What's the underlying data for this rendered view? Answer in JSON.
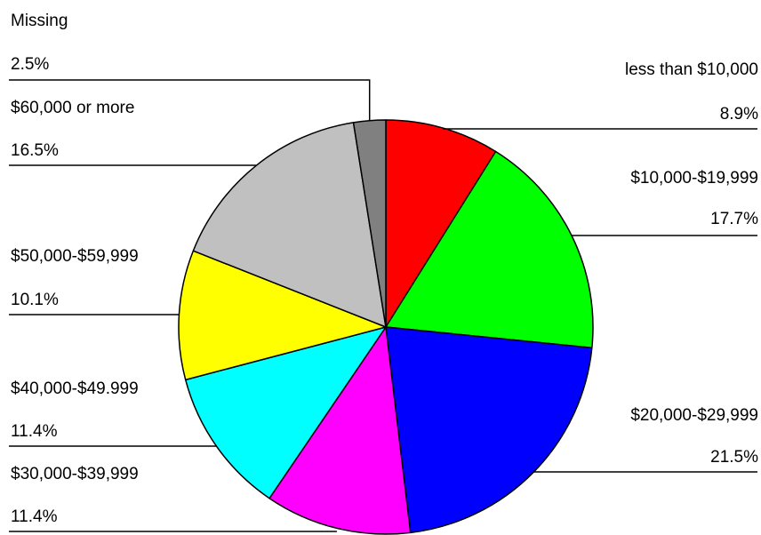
{
  "chart_data": {
    "type": "pie",
    "start_angle_deg": 0,
    "direction": "clockwise",
    "slices": [
      {
        "label": "less than $10,000",
        "value": 8.9,
        "value_text": "8.9%",
        "color": "#ff0000"
      },
      {
        "label": "$10,000-$19,999",
        "value": 17.7,
        "value_text": "17.7%",
        "color": "#00ff00"
      },
      {
        "label": "$20,000-$29,999",
        "value": 21.5,
        "value_text": "21.5%",
        "color": "#0000ff"
      },
      {
        "label": "$30,000-$39,999",
        "value": 11.4,
        "value_text": "11.4%",
        "color": "#ff00ff"
      },
      {
        "label": "$40,000-$49.999",
        "value": 11.4,
        "value_text": "11.4%",
        "color": "#00ffff"
      },
      {
        "label": "$50,000-$59,999",
        "value": 10.1,
        "value_text": "10.1%",
        "color": "#ffff00"
      },
      {
        "label": "$60,000 or more",
        "value": 16.5,
        "value_text": "16.5%",
        "color": "#c0c0c0"
      },
      {
        "label": "Missing",
        "value": 2.5,
        "value_text": "2.5%",
        "color": "#808080"
      }
    ]
  }
}
